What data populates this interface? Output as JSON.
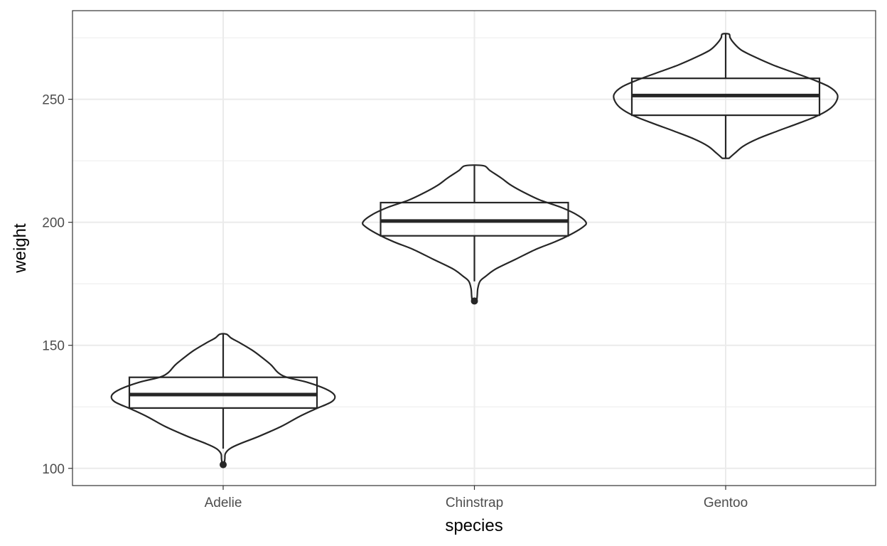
{
  "chart_data": {
    "type": "violin",
    "xlabel": "species",
    "ylabel": "weight",
    "ylim": [
      93,
      286
    ],
    "yticks": [
      100,
      150,
      200,
      250
    ],
    "grid": true,
    "categories": [
      "Adelie",
      "Chinstrap",
      "Gentoo"
    ],
    "colors": {
      "stroke": "#262626",
      "grid": "#ebebeb",
      "tick_text": "#4d4d4d",
      "panel_border": "#333333"
    },
    "groups": [
      {
        "name": "Adelie",
        "box": {
          "q1": 124.5,
          "median": 130,
          "q3": 137,
          "whisker_low": 108,
          "whisker_high": 154.5
        },
        "outliers": [
          101.5
        ],
        "density": [
          [
            101.5,
            0.01
          ],
          [
            104,
            0.015
          ],
          [
            106,
            0.02
          ],
          [
            108,
            0.06
          ],
          [
            110,
            0.15
          ],
          [
            113,
            0.32
          ],
          [
            117,
            0.52
          ],
          [
            121,
            0.68
          ],
          [
            124,
            0.82
          ],
          [
            127,
            0.97
          ],
          [
            129.5,
            1.0
          ],
          [
            132,
            0.93
          ],
          [
            135,
            0.75
          ],
          [
            137,
            0.57
          ],
          [
            139,
            0.49
          ],
          [
            142,
            0.43
          ],
          [
            145,
            0.35
          ],
          [
            148,
            0.26
          ],
          [
            151,
            0.15
          ],
          [
            153,
            0.07
          ],
          [
            154.5,
            0.03
          ]
        ]
      },
      {
        "name": "Chinstrap",
        "box": {
          "q1": 194.5,
          "median": 200.5,
          "q3": 208,
          "whisker_low": 176,
          "whisker_high": 223
        },
        "outliers": [
          168
        ],
        "density": [
          [
            168,
            0.02
          ],
          [
            170,
            0.025
          ],
          [
            173,
            0.03
          ],
          [
            176,
            0.05
          ],
          [
            178,
            0.1
          ],
          [
            181,
            0.19
          ],
          [
            185,
            0.37
          ],
          [
            189,
            0.55
          ],
          [
            192,
            0.72
          ],
          [
            195,
            0.86
          ],
          [
            198,
            0.97
          ],
          [
            200,
            1.0
          ],
          [
            203,
            0.92
          ],
          [
            206,
            0.78
          ],
          [
            209,
            0.59
          ],
          [
            212,
            0.45
          ],
          [
            215,
            0.33
          ],
          [
            218,
            0.24
          ],
          [
            221,
            0.14
          ],
          [
            223,
            0.08
          ]
        ]
      },
      {
        "name": "Gentoo",
        "box": {
          "q1": 243.5,
          "median": 251.5,
          "q3": 258.5,
          "whisker_low": 226,
          "whisker_high": 276.5
        },
        "outliers": [],
        "density": [
          [
            226,
            0.03
          ],
          [
            228,
            0.08
          ],
          [
            231,
            0.16
          ],
          [
            234,
            0.29
          ],
          [
            237,
            0.46
          ],
          [
            240,
            0.64
          ],
          [
            243,
            0.81
          ],
          [
            246,
            0.93
          ],
          [
            249,
            0.99
          ],
          [
            252,
            1.0
          ],
          [
            255,
            0.93
          ],
          [
            258,
            0.78
          ],
          [
            261,
            0.6
          ],
          [
            264,
            0.42
          ],
          [
            267,
            0.27
          ],
          [
            270,
            0.14
          ],
          [
            273,
            0.07
          ],
          [
            275,
            0.04
          ],
          [
            276.5,
            0.03
          ]
        ]
      }
    ]
  }
}
